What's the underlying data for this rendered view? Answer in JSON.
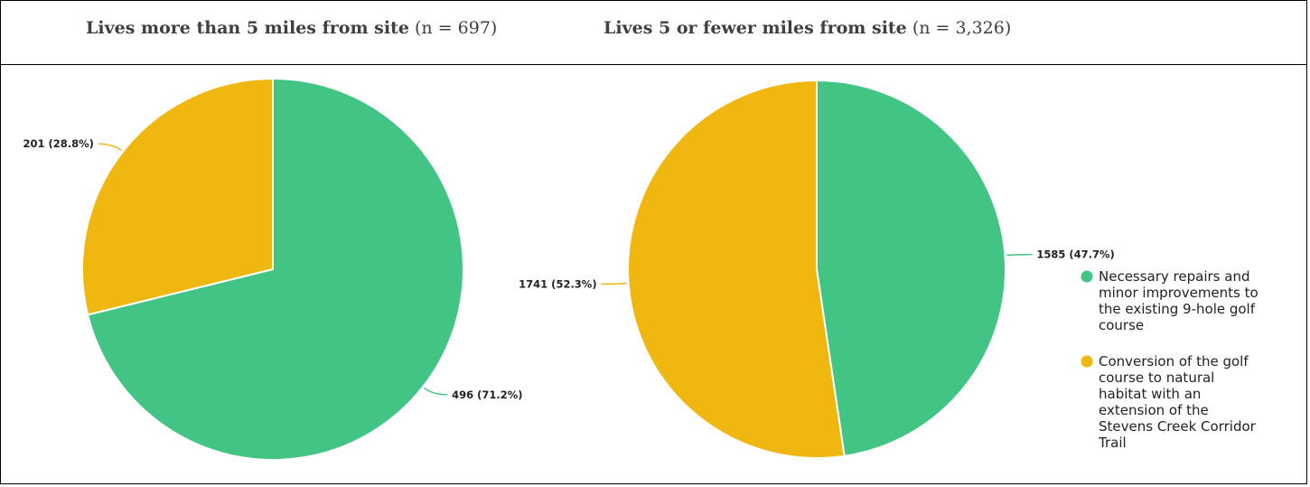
{
  "headings": {
    "left": {
      "bold": "Lives more than 5 miles from site",
      "rest": " (n = 697)"
    },
    "right": {
      "bold": "Lives 5 or fewer miles from site",
      "rest": " (n = 3,326)"
    }
  },
  "legend": [
    {
      "lines": [
        "Necessary repairs and",
        "minor improvements to",
        "the existing 9-hole golf",
        "course"
      ],
      "color": "#42c484"
    },
    {
      "lines": [
        "Conversion of the golf",
        "course to natural",
        "habitat with an",
        "extension of the",
        "Stevens Creek Corridor",
        "Trail"
      ],
      "color": "#f0b711"
    }
  ],
  "chart_data": [
    {
      "type": "pie",
      "title": "Lives more than 5 miles from site (n = 697)",
      "slices": [
        {
          "label": "Necessary repairs and minor improvements to the existing 9-hole golf course",
          "value": 496,
          "percent": 71.2,
          "data_label": "496 (71.2%)",
          "color": "#42c484"
        },
        {
          "label": "Conversion of the golf course to natural habitat with an extension of the Stevens Creek Corridor Trail",
          "value": 201,
          "percent": 28.8,
          "data_label": "201 (28.8%)",
          "color": "#f0b711"
        }
      ]
    },
    {
      "type": "pie",
      "title": "Lives 5 or fewer miles from site (n = 3,326)",
      "slices": [
        {
          "label": "Necessary repairs and minor improvements to the existing 9-hole golf course",
          "value": 1585,
          "percent": 47.7,
          "data_label": "1585 (47.7%)",
          "color": "#42c484"
        },
        {
          "label": "Conversion of the golf course to natural habitat with an extension of the Stevens Creek Corridor Trail",
          "value": 1741,
          "percent": 52.3,
          "data_label": "1741 (52.3%)",
          "color": "#f0b711"
        }
      ]
    }
  ]
}
